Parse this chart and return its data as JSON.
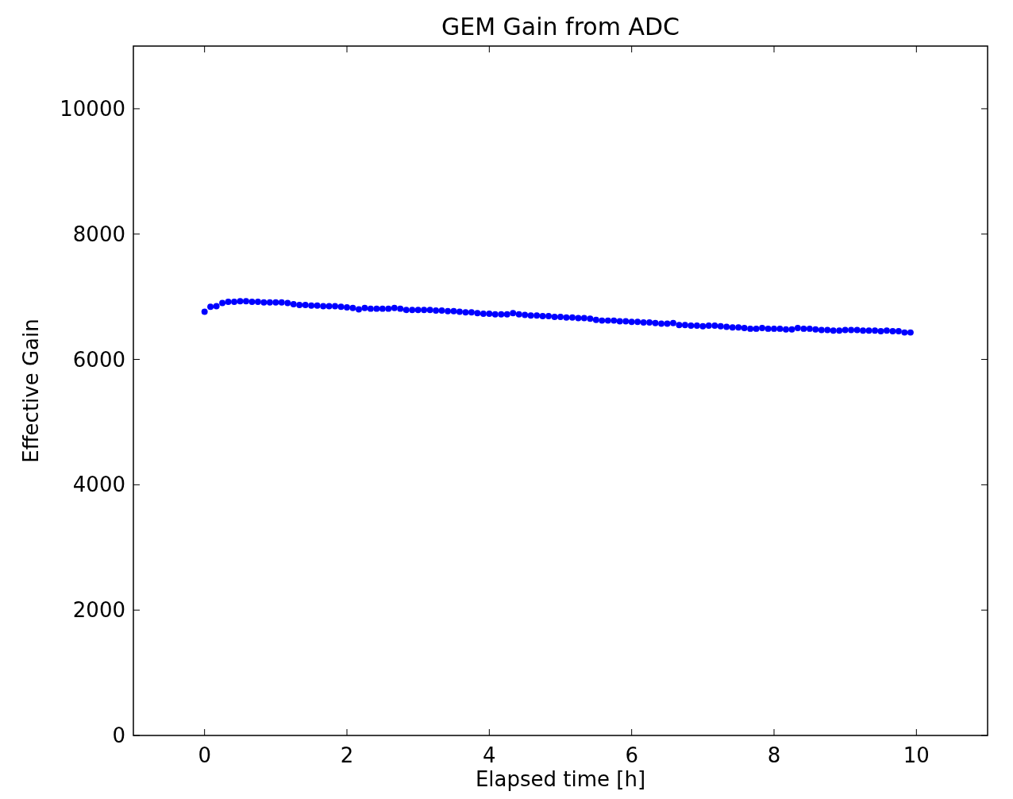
{
  "chart_data": {
    "type": "scatter",
    "title": "GEM Gain from ADC",
    "xlabel": "Elapsed time [h]",
    "ylabel": "Effective Gain",
    "xlim": [
      -1,
      11
    ],
    "xticks": [
      0,
      2,
      4,
      6,
      8,
      10
    ],
    "ylim": [
      0,
      11000
    ],
    "yticks": [
      0,
      2000,
      4000,
      6000,
      8000,
      10000
    ],
    "grid": false,
    "marker": "circle",
    "series": [
      {
        "color": "#0000ff",
        "x": [
          0,
          0.083,
          0.167,
          0.25,
          0.333,
          0.417,
          0.5,
          0.583,
          0.667,
          0.75,
          0.833,
          0.917,
          1,
          1.083,
          1.167,
          1.25,
          1.333,
          1.417,
          1.5,
          1.583,
          1.667,
          1.75,
          1.833,
          1.917,
          2,
          2.083,
          2.167,
          2.25,
          2.333,
          2.417,
          2.5,
          2.583,
          2.667,
          2.75,
          2.833,
          2.917,
          3,
          3.083,
          3.167,
          3.25,
          3.333,
          3.417,
          3.5,
          3.583,
          3.667,
          3.75,
          3.833,
          3.917,
          4,
          4.083,
          4.167,
          4.25,
          4.333,
          4.417,
          4.5,
          4.583,
          4.667,
          4.75,
          4.833,
          4.917,
          5,
          5.083,
          5.167,
          5.25,
          5.333,
          5.417,
          5.5,
          5.583,
          5.667,
          5.75,
          5.833,
          5.917,
          6,
          6.083,
          6.167,
          6.25,
          6.333,
          6.417,
          6.5,
          6.583,
          6.667,
          6.75,
          6.833,
          6.917,
          7,
          7.083,
          7.167,
          7.25,
          7.333,
          7.417,
          7.5,
          7.583,
          7.667,
          7.75,
          7.833,
          7.917,
          8,
          8.083,
          8.167,
          8.25,
          8.333,
          8.417,
          8.5,
          8.583,
          8.667,
          8.75,
          8.833,
          8.917,
          9,
          9.083,
          9.167,
          9.25,
          9.333,
          9.417,
          9.5,
          9.583,
          9.667,
          9.75,
          9.833,
          9.917
        ],
        "values": [
          6760,
          6840,
          6850,
          6900,
          6920,
          6920,
          6930,
          6930,
          6920,
          6920,
          6910,
          6910,
          6910,
          6910,
          6900,
          6880,
          6870,
          6870,
          6860,
          6860,
          6850,
          6850,
          6850,
          6840,
          6830,
          6820,
          6800,
          6820,
          6810,
          6810,
          6810,
          6810,
          6820,
          6810,
          6790,
          6790,
          6790,
          6790,
          6790,
          6780,
          6780,
          6770,
          6770,
          6760,
          6750,
          6750,
          6740,
          6730,
          6730,
          6720,
          6720,
          6720,
          6740,
          6720,
          6710,
          6700,
          6700,
          6690,
          6690,
          6680,
          6680,
          6670,
          6670,
          6660,
          6660,
          6650,
          6630,
          6620,
          6620,
          6620,
          6610,
          6610,
          6600,
          6600,
          6590,
          6590,
          6580,
          6570,
          6570,
          6580,
          6550,
          6550,
          6540,
          6540,
          6530,
          6540,
          6540,
          6530,
          6520,
          6510,
          6510,
          6500,
          6490,
          6490,
          6500,
          6490,
          6490,
          6490,
          6480,
          6480,
          6500,
          6490,
          6490,
          6480,
          6470,
          6470,
          6460,
          6460,
          6470,
          6470,
          6470,
          6460,
          6460,
          6460,
          6450,
          6460,
          6450,
          6450,
          6430,
          6430
        ]
      }
    ]
  }
}
